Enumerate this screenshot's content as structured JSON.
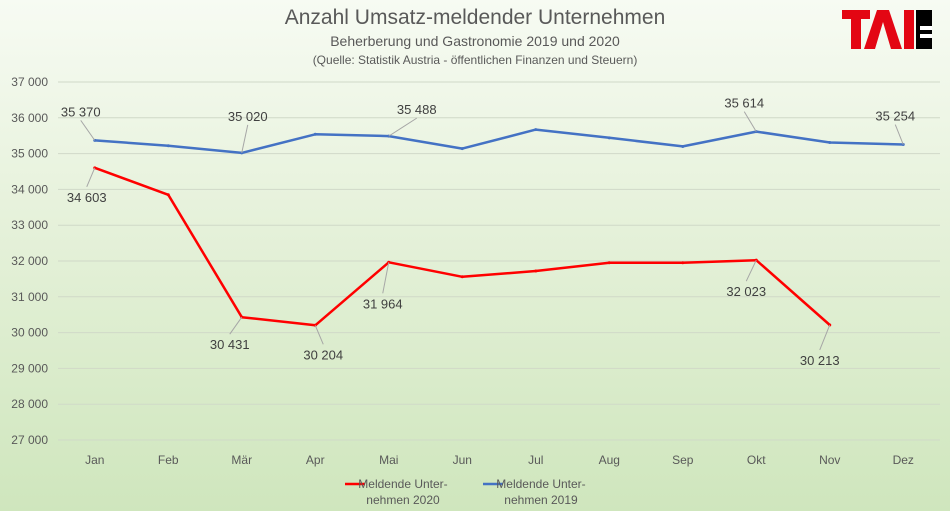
{
  "chart_data": {
    "type": "line",
    "title": "Anzahl Umsatz-meldender Unternehmen",
    "subtitle": "Beherberung  und Gastronomie  2019 und 2020",
    "source": "(Quelle: Statistik Austria - öffentlichen Finanzen und Steuern)",
    "categories": [
      "Jan",
      "Feb",
      "Mär",
      "Apr",
      "Mai",
      "Jun",
      "Jul",
      "Aug",
      "Sep",
      "Okt",
      "Nov",
      "Dez"
    ],
    "ylim": [
      27000,
      37000
    ],
    "yticks": [
      27000,
      28000,
      29000,
      30000,
      31000,
      32000,
      33000,
      34000,
      35000,
      36000,
      37000
    ],
    "ytick_labels": [
      "27 000",
      "28 000",
      "29 000",
      "30 000",
      "31 000",
      "32 000",
      "33 000",
      "34 000",
      "35 000",
      "36 000",
      "37 000"
    ],
    "grid": true,
    "legend_position": "bottom",
    "series": [
      {
        "name": "Meldende Unter-\nnehmen 2020",
        "legend_lines": [
          "Meldende Unter-",
          "nehmen 2020"
        ],
        "color": "#ff0000",
        "values": [
          34603,
          33850,
          30431,
          30204,
          31964,
          31560,
          31720,
          31950,
          31950,
          32023,
          30213,
          null
        ],
        "labels": {
          "0": "34 603",
          "2": "30 431",
          "3": "30 204",
          "4": "31 964",
          "9": "32 023",
          "10": "30 213"
        }
      },
      {
        "name": "Meldende Unter-\nnehmen 2019",
        "legend_lines": [
          "Meldende Unter-",
          "nehmen 2019"
        ],
        "color": "#4472c4",
        "values": [
          35370,
          35220,
          35020,
          35540,
          35488,
          35140,
          35670,
          35440,
          35200,
          35614,
          35310,
          35254
        ],
        "labels": {
          "0": "35 370",
          "2": "35 020",
          "4": "35 488",
          "9": "35 614",
          "11": "35 254"
        }
      }
    ]
  },
  "logo": {
    "text": "TAI",
    "colors": {
      "red": "#e30613",
      "black": "#000000"
    }
  }
}
